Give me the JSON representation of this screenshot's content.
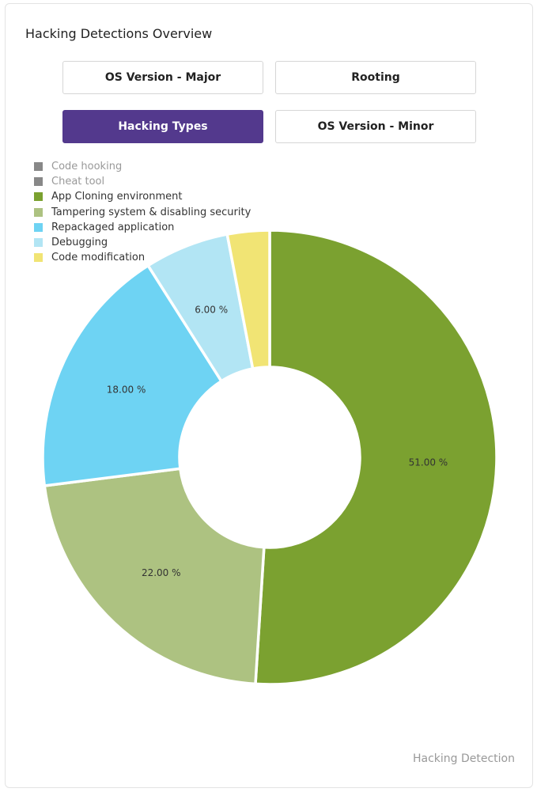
{
  "panel": {
    "title": "Hacking Detections Overview",
    "footer": "Hacking Detection"
  },
  "tabs": [
    {
      "label": "OS Version - Major",
      "active": false
    },
    {
      "label": "Rooting",
      "active": false
    },
    {
      "label": "Hacking Types",
      "active": true
    },
    {
      "label": "OS Version - Minor",
      "active": false
    }
  ],
  "colors": {
    "accent": "#53398d"
  },
  "chart_data": {
    "type": "pie",
    "variant": "donut",
    "legend_position": "top-left",
    "series": [
      {
        "name": "Code hooking",
        "value": 0,
        "color": "#888888",
        "muted": true
      },
      {
        "name": "Cheat tool",
        "value": 0,
        "color": "#888888",
        "muted": true
      },
      {
        "name": "App Cloning environment",
        "value": 51,
        "color": "#7ba130",
        "muted": false
      },
      {
        "name": "Tampering system & disabling security",
        "value": 22,
        "color": "#adc281",
        "muted": false
      },
      {
        "name": "Repackaged application",
        "value": 18,
        "color": "#6ed3f3",
        "muted": false
      },
      {
        "name": "Debugging",
        "value": 6,
        "color": "#b2e5f4",
        "muted": false
      },
      {
        "name": "Code modification",
        "value": 3,
        "color": "#f1e474",
        "muted": false
      }
    ],
    "data_labels": [
      {
        "series": "App Cloning environment",
        "text": "51.00 %"
      },
      {
        "series": "Tampering system & disabling security",
        "text": "22.00 %"
      },
      {
        "series": "Repackaged application",
        "text": "18.00 %"
      },
      {
        "series": "Debugging",
        "text": "6.00 %"
      }
    ]
  }
}
